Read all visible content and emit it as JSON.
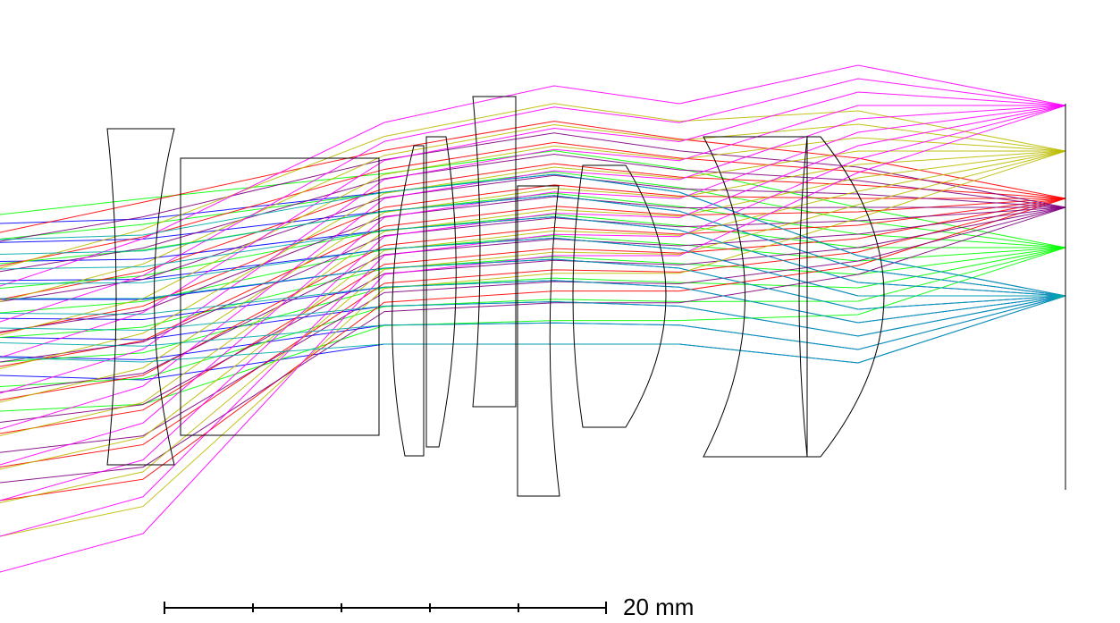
{
  "diagram": {
    "kind": "optical-lens-ray-trace",
    "scale_bar_label": "20 mm",
    "field_colors": [
      "#0000ff",
      "#00ff00",
      "#ff0000",
      "#800080",
      "#bbbb00",
      "#ff00ff",
      "#00aaaa"
    ]
  }
}
